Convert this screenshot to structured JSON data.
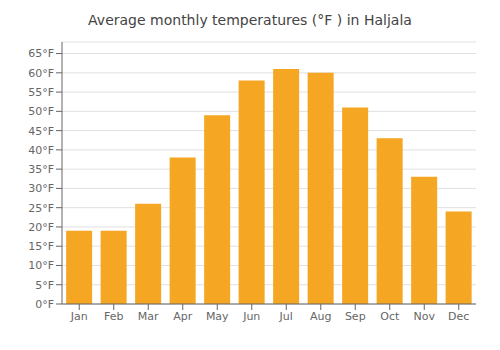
{
  "chart_data": {
    "type": "bar",
    "title": "Average monthly temperatures (°F ) in Haljala",
    "categories": [
      "Jan",
      "Feb",
      "Mar",
      "Apr",
      "May",
      "Jun",
      "Jul",
      "Aug",
      "Sep",
      "Oct",
      "Nov",
      "Dec"
    ],
    "values": [
      19,
      19,
      26,
      38,
      49,
      58,
      61,
      60,
      51,
      43,
      33,
      24
    ],
    "color": "#F5A623",
    "ylim": [
      0,
      68
    ],
    "yticks": [
      {
        "value": 0,
        "label": "0°F"
      },
      {
        "value": 5,
        "label": "5°F"
      },
      {
        "value": 10,
        "label": "10°F"
      },
      {
        "value": 15,
        "label": "15°F"
      },
      {
        "value": 20,
        "label": "20°F"
      },
      {
        "value": 25,
        "label": "25°F"
      },
      {
        "value": 30,
        "label": "30°F"
      },
      {
        "value": 35,
        "label": "35°F"
      },
      {
        "value": 40,
        "label": "40°F"
      },
      {
        "value": 45,
        "label": "45°F"
      },
      {
        "value": 50,
        "label": "50°F"
      },
      {
        "value": 55,
        "label": "55°F"
      },
      {
        "value": 60,
        "label": "60°F"
      },
      {
        "value": 65,
        "label": "65°F"
      }
    ],
    "grid": true
  }
}
